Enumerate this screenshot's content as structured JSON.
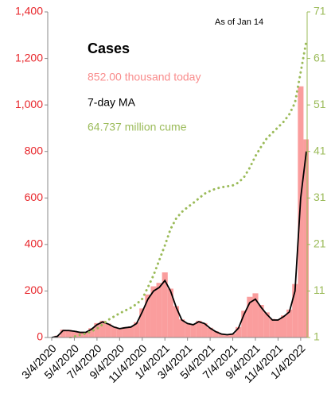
{
  "chart_data": {
    "type": "bar",
    "title": "Cases",
    "annotation": "As of Jan 14",
    "categories": [
      "3/4/2020",
      null,
      null,
      null,
      "5/4/2020",
      null,
      null,
      null,
      "7/4/2020",
      null,
      null,
      null,
      "9/4/2020",
      null,
      null,
      null,
      "11/4/2020",
      null,
      null,
      null,
      "1/4/2021",
      null,
      null,
      null,
      "3/4/2021",
      null,
      null,
      null,
      "5/4/2021",
      null,
      null,
      null,
      "7/4/2021",
      null,
      null,
      null,
      "9/4/2021",
      null,
      null,
      null,
      "11/4/2021",
      null,
      null,
      null,
      "1/4/2022",
      null
    ],
    "series": [
      {
        "name": "852.00 thousand today",
        "color": "#f98c8c",
        "render": "bar",
        "values": [
          0.2,
          8,
          34,
          33,
          29,
          24,
          23,
          40,
          62,
          72,
          60,
          47,
          40,
          45,
          48,
          66,
          125,
          185,
          220,
          235,
          280,
          210,
          135,
          78,
          62,
          58,
          72,
          62,
          42,
          27,
          16,
          13,
          17,
          45,
          115,
          175,
          190,
          140,
          108,
          80,
          78,
          95,
          120,
          230,
          1080,
          852
        ]
      },
      {
        "name": "7-day MA",
        "color": "#000000",
        "render": "line",
        "values": [
          0.1,
          5,
          30,
          30,
          27,
          22,
          22,
          35,
          55,
          67,
          58,
          45,
          38,
          42,
          45,
          60,
          110,
          165,
          200,
          215,
          245,
          200,
          130,
          75,
          60,
          55,
          68,
          60,
          40,
          25,
          15,
          12,
          15,
          40,
          100,
          150,
          165,
          130,
          100,
          75,
          75,
          90,
          110,
          200,
          600,
          800
        ]
      },
      {
        "name": "64.737 million cume",
        "color": "#9bbb59",
        "render": "dotted",
        "axis": "y2",
        "values": [
          0,
          0.01,
          0.25,
          0.75,
          1.2,
          1.55,
          1.85,
          2.3,
          2.9,
          3.8,
          4.8,
          5.5,
          6.2,
          6.8,
          7.4,
          8.2,
          9.3,
          11.8,
          14.4,
          17.6,
          20.8,
          24.3,
          26.6,
          28.0,
          29.0,
          29.9,
          30.9,
          31.9,
          32.5,
          33.0,
          33.3,
          33.5,
          33.7,
          34.3,
          35.5,
          37.5,
          40.0,
          42.0,
          43.8,
          45.0,
          46.2,
          47.4,
          49.0,
          51.5,
          58.0,
          64.737
        ]
      }
    ],
    "ylim": [
      0,
      1400
    ],
    "yticks": [
      0,
      200,
      400,
      600,
      800,
      {
        "value": 1000,
        "label": "1,000"
      },
      {
        "value": 1200,
        "label": "1,200"
      },
      {
        "value": 1400,
        "label": "1,400"
      }
    ],
    "y2lim": [
      1,
      71
    ],
    "y2ticks": [
      1,
      11,
      21,
      31,
      41,
      51,
      61,
      71
    ],
    "ytick_color": "#e8262b",
    "y2tick_color": "#9bbb59"
  }
}
